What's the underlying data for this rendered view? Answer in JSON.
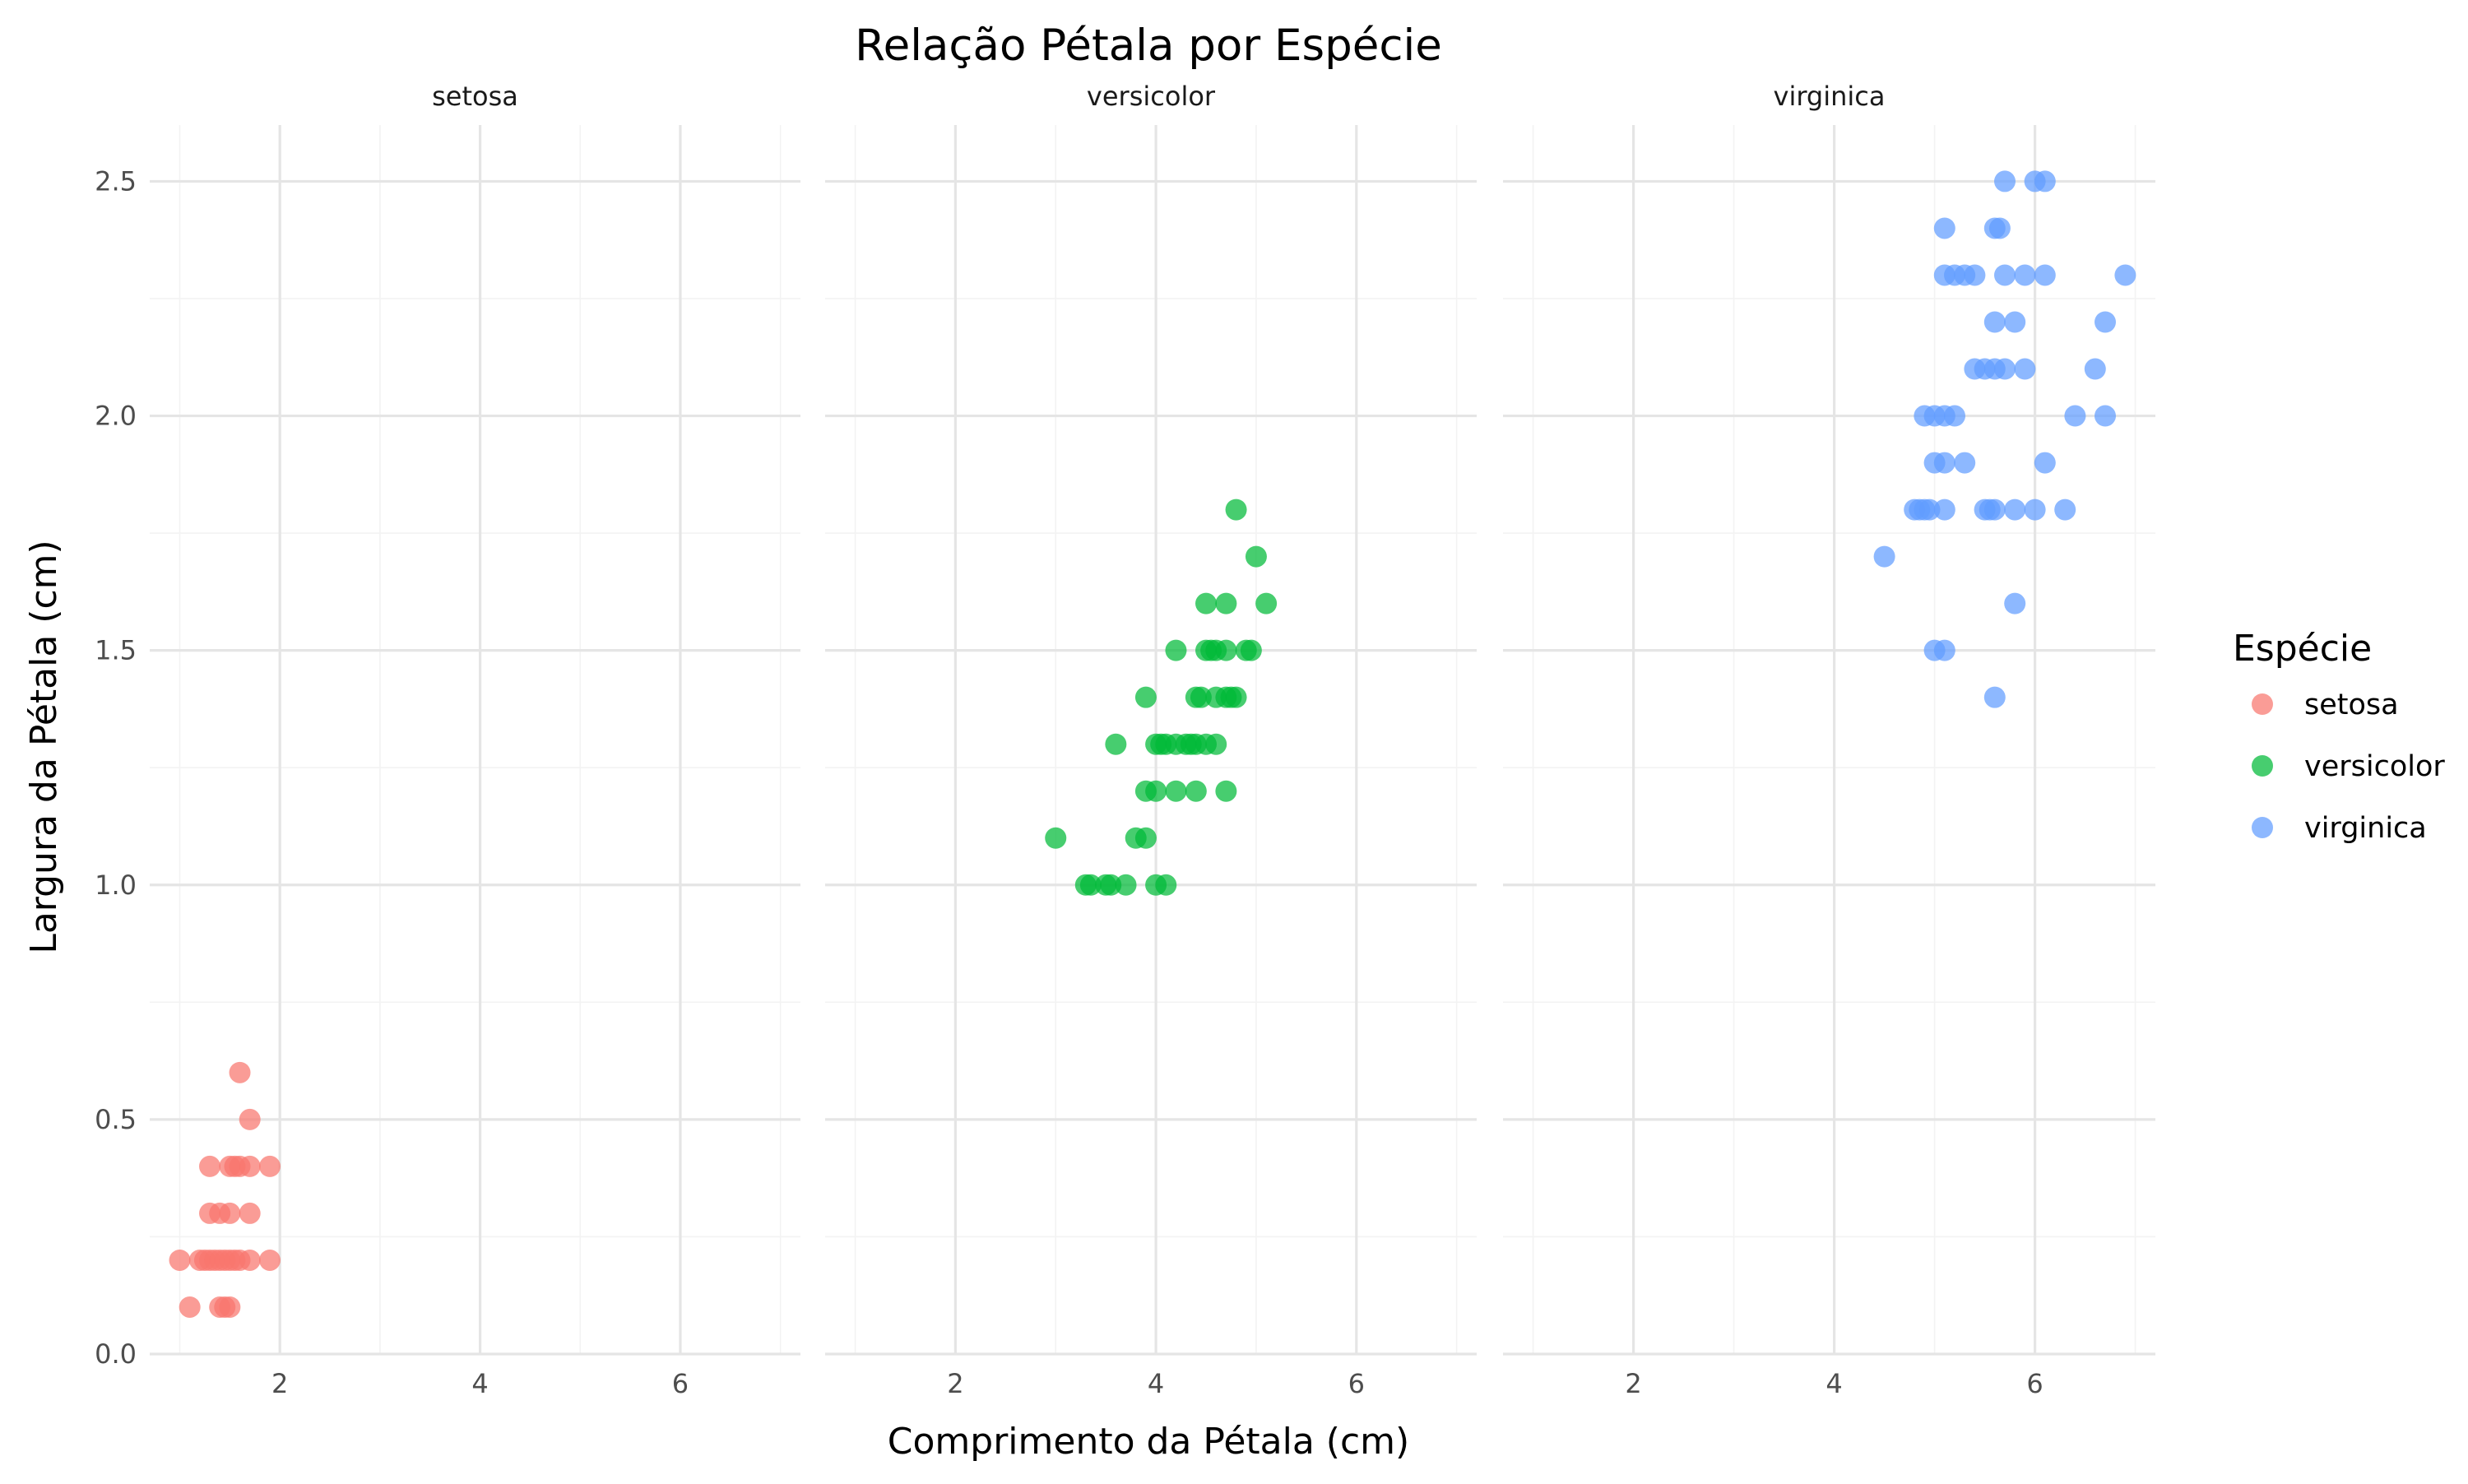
{
  "chart_data": {
    "type": "scatter",
    "title": "Relação Pétala por Espécie",
    "xlabel": "Comprimento da Pétala (cm)",
    "ylabel": "Largura da Pétala (cm)",
    "xlim": [
      0.7,
      7.2
    ],
    "ylim": [
      0,
      2.62
    ],
    "x_ticks": [
      2,
      4,
      6
    ],
    "y_ticks": [
      0.0,
      0.5,
      1.0,
      1.5,
      2.0,
      2.5
    ],
    "y_tick_labels": [
      "0.0",
      "0.5",
      "1.0",
      "1.5",
      "2.0",
      "2.5"
    ],
    "grid": true,
    "facet_by": "species",
    "legend": {
      "title": "Espécie",
      "placement": "right",
      "items": [
        "setosa",
        "versicolor",
        "virginica"
      ]
    },
    "panels": [
      {
        "label": "setosa",
        "series": "setosa"
      },
      {
        "label": "versicolor",
        "series": "versicolor"
      },
      {
        "label": "virginica",
        "series": "virginica"
      }
    ],
    "series": [
      {
        "name": "setosa",
        "color": "#F8766D",
        "points": [
          [
            1.0,
            0.2
          ],
          [
            1.1,
            0.1
          ],
          [
            1.2,
            0.2
          ],
          [
            1.25,
            0.2
          ],
          [
            1.3,
            0.2
          ],
          [
            1.3,
            0.3
          ],
          [
            1.3,
            0.4
          ],
          [
            1.35,
            0.2
          ],
          [
            1.4,
            0.1
          ],
          [
            1.4,
            0.2
          ],
          [
            1.4,
            0.3
          ],
          [
            1.45,
            0.2
          ],
          [
            1.45,
            0.1
          ],
          [
            1.5,
            0.1
          ],
          [
            1.5,
            0.2
          ],
          [
            1.5,
            0.3
          ],
          [
            1.5,
            0.4
          ],
          [
            1.55,
            0.4
          ],
          [
            1.55,
            0.2
          ],
          [
            1.6,
            0.2
          ],
          [
            1.6,
            0.4
          ],
          [
            1.6,
            0.6
          ],
          [
            1.7,
            0.2
          ],
          [
            1.7,
            0.3
          ],
          [
            1.7,
            0.4
          ],
          [
            1.7,
            0.5
          ],
          [
            1.9,
            0.2
          ],
          [
            1.9,
            0.4
          ]
        ]
      },
      {
        "name": "versicolor",
        "color": "#00BA38",
        "points": [
          [
            3.0,
            1.1
          ],
          [
            3.3,
            1.0
          ],
          [
            3.35,
            1.0
          ],
          [
            3.5,
            1.0
          ],
          [
            3.55,
            1.0
          ],
          [
            3.6,
            1.3
          ],
          [
            3.7,
            1.0
          ],
          [
            3.8,
            1.1
          ],
          [
            3.9,
            1.1
          ],
          [
            3.9,
            1.2
          ],
          [
            3.9,
            1.4
          ],
          [
            4.0,
            1.0
          ],
          [
            4.0,
            1.2
          ],
          [
            4.0,
            1.3
          ],
          [
            4.05,
            1.3
          ],
          [
            4.1,
            1.0
          ],
          [
            4.1,
            1.3
          ],
          [
            4.2,
            1.2
          ],
          [
            4.2,
            1.3
          ],
          [
            4.2,
            1.5
          ],
          [
            4.3,
            1.3
          ],
          [
            4.35,
            1.3
          ],
          [
            4.4,
            1.2
          ],
          [
            4.4,
            1.3
          ],
          [
            4.4,
            1.4
          ],
          [
            4.45,
            1.4
          ],
          [
            4.5,
            1.3
          ],
          [
            4.5,
            1.5
          ],
          [
            4.5,
            1.6
          ],
          [
            4.55,
            1.5
          ],
          [
            4.6,
            1.3
          ],
          [
            4.6,
            1.4
          ],
          [
            4.6,
            1.5
          ],
          [
            4.7,
            1.2
          ],
          [
            4.7,
            1.4
          ],
          [
            4.7,
            1.5
          ],
          [
            4.7,
            1.6
          ],
          [
            4.75,
            1.4
          ],
          [
            4.8,
            1.4
          ],
          [
            4.8,
            1.8
          ],
          [
            4.9,
            1.5
          ],
          [
            4.95,
            1.5
          ],
          [
            5.0,
            1.7
          ],
          [
            5.1,
            1.6
          ]
        ]
      },
      {
        "name": "virginica",
        "color": "#619CFF",
        "points": [
          [
            4.5,
            1.7
          ],
          [
            4.8,
            1.8
          ],
          [
            4.85,
            1.8
          ],
          [
            4.9,
            1.8
          ],
          [
            4.9,
            2.0
          ],
          [
            4.95,
            1.8
          ],
          [
            5.0,
            1.5
          ],
          [
            5.0,
            1.9
          ],
          [
            5.0,
            2.0
          ],
          [
            5.1,
            1.5
          ],
          [
            5.1,
            1.8
          ],
          [
            5.1,
            1.9
          ],
          [
            5.1,
            2.0
          ],
          [
            5.1,
            2.3
          ],
          [
            5.1,
            2.4
          ],
          [
            5.2,
            2.0
          ],
          [
            5.2,
            2.3
          ],
          [
            5.3,
            1.9
          ],
          [
            5.3,
            2.3
          ],
          [
            5.4,
            2.1
          ],
          [
            5.4,
            2.3
          ],
          [
            5.5,
            1.8
          ],
          [
            5.5,
            2.1
          ],
          [
            5.55,
            1.8
          ],
          [
            5.6,
            1.4
          ],
          [
            5.6,
            1.8
          ],
          [
            5.6,
            2.1
          ],
          [
            5.6,
            2.2
          ],
          [
            5.6,
            2.4
          ],
          [
            5.65,
            2.4
          ],
          [
            5.7,
            2.1
          ],
          [
            5.7,
            2.3
          ],
          [
            5.7,
            2.5
          ],
          [
            5.8,
            1.6
          ],
          [
            5.8,
            1.8
          ],
          [
            5.8,
            2.2
          ],
          [
            5.9,
            2.1
          ],
          [
            5.9,
            2.3
          ],
          [
            6.0,
            1.8
          ],
          [
            6.0,
            2.5
          ],
          [
            6.1,
            1.9
          ],
          [
            6.1,
            2.3
          ],
          [
            6.1,
            2.5
          ],
          [
            6.3,
            1.8
          ],
          [
            6.4,
            2.0
          ],
          [
            6.6,
            2.1
          ],
          [
            6.7,
            2.0
          ],
          [
            6.7,
            2.2
          ],
          [
            6.9,
            2.3
          ]
        ]
      }
    ]
  }
}
